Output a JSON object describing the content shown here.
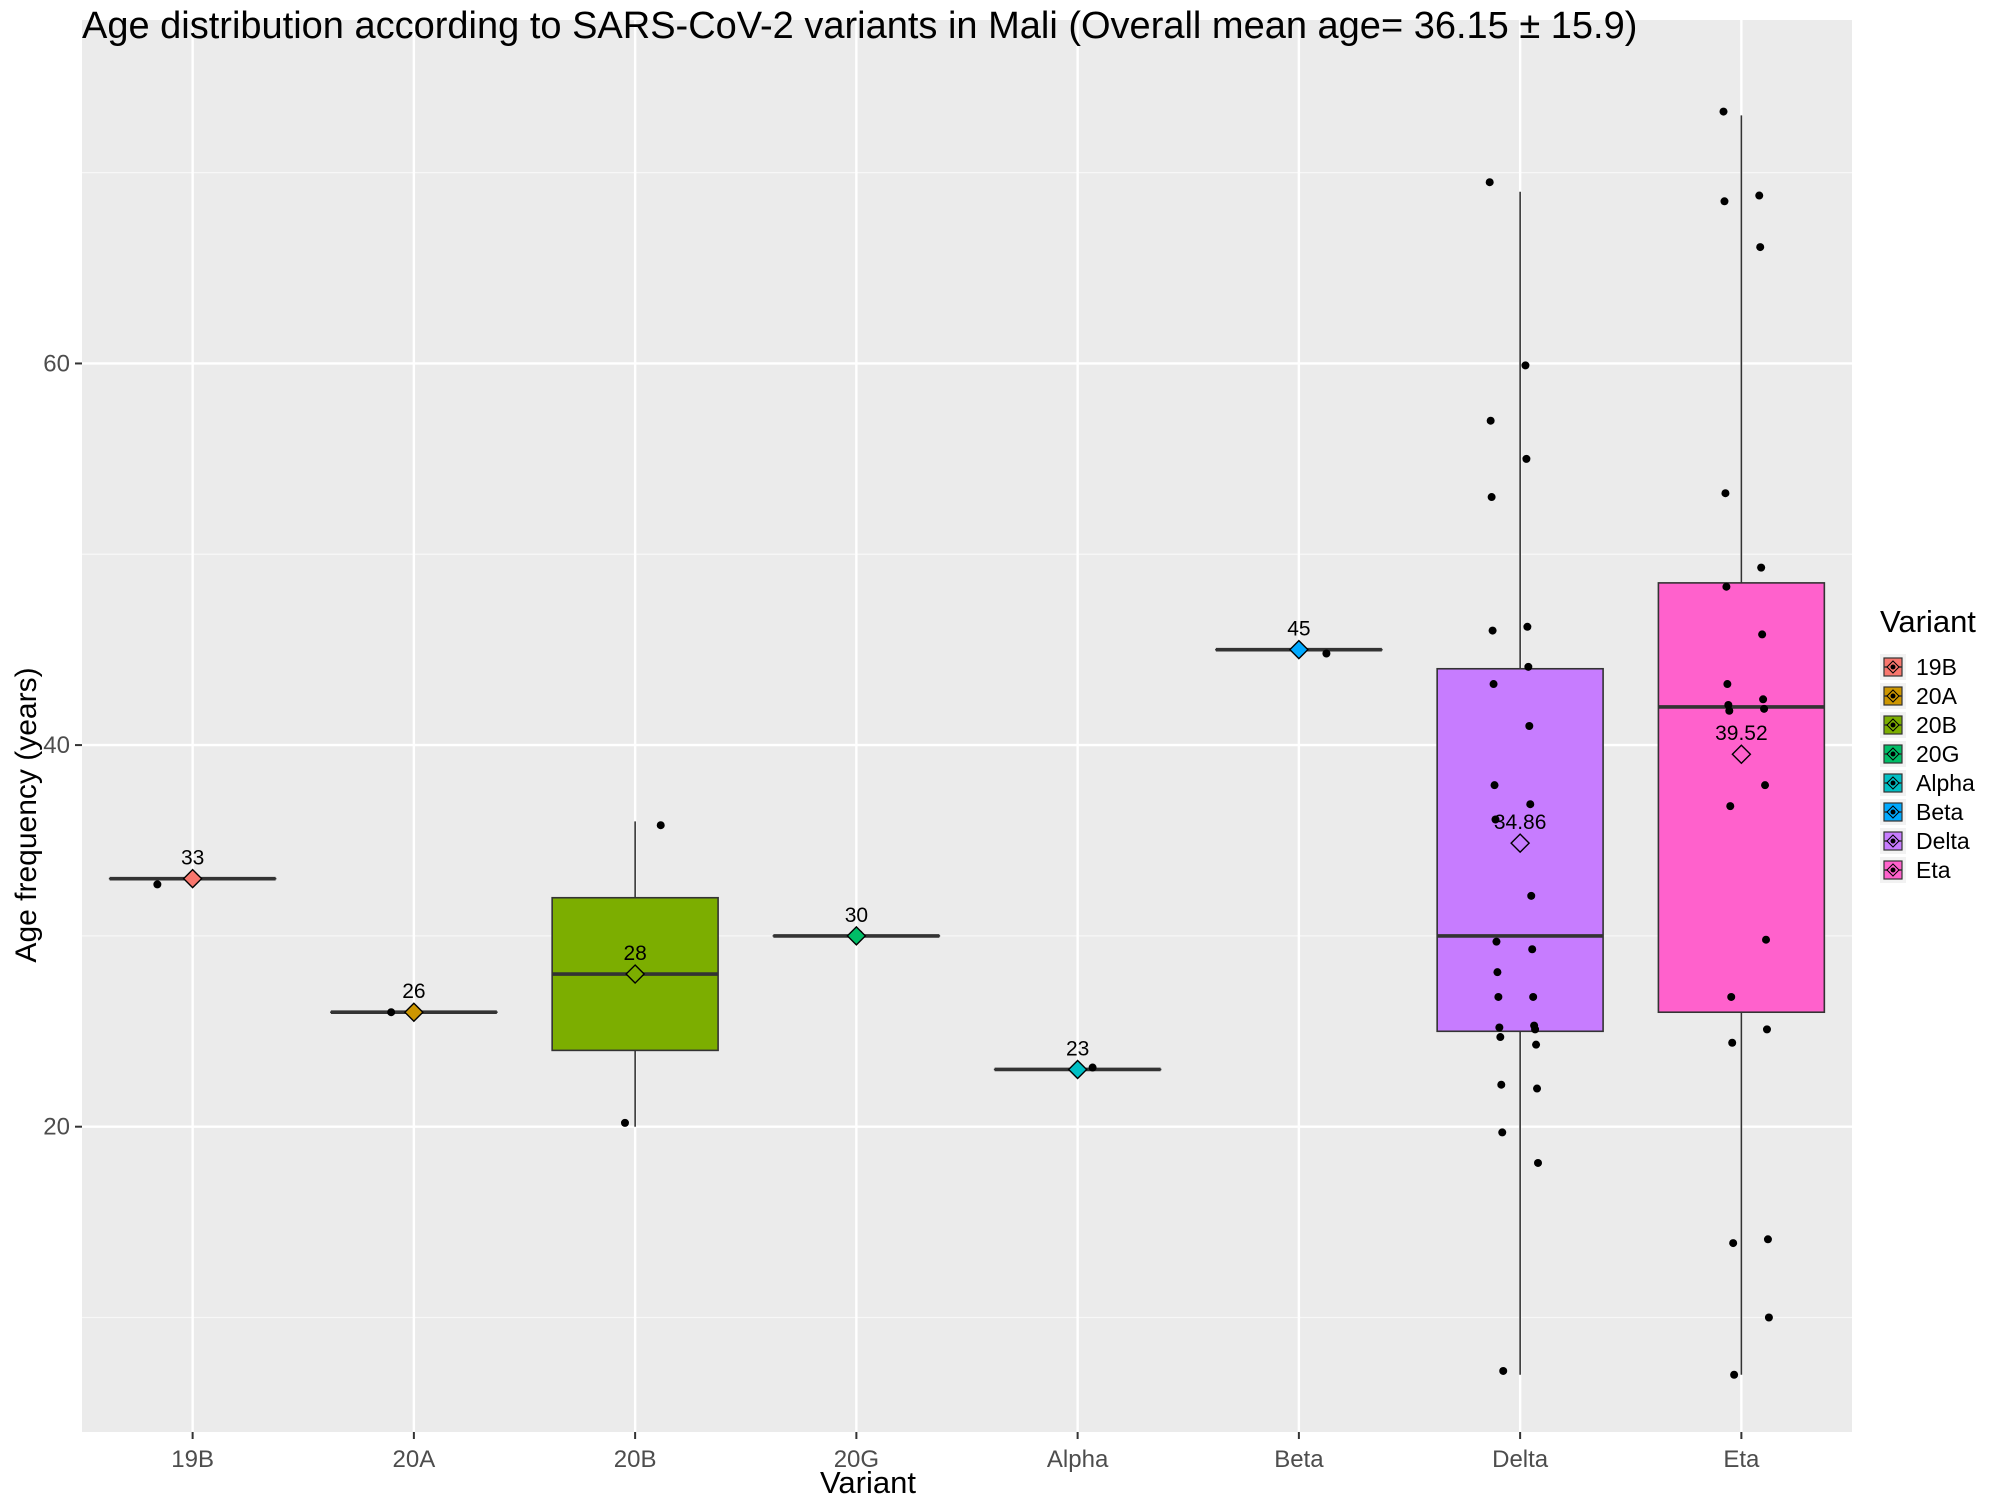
{
  "chart_data": {
    "type": "box",
    "title": "Age distribution according to SARS-CoV-2 variants in Mali (Overall mean age= 36.15 ± 15.9)",
    "xlabel": "Variant",
    "ylabel": "Age frequency (years)",
    "ylim": [
      4,
      78
    ],
    "y_ticks": [
      20,
      40,
      60
    ],
    "grid": true,
    "legend": {
      "title": "Variant",
      "position": "right"
    },
    "categories": [
      "19B",
      "20A",
      "20B",
      "20G",
      "Alpha",
      "Beta",
      "Delta",
      "Eta"
    ],
    "series": [
      {
        "name": "19B",
        "color": "#F8766D",
        "box": {
          "min": 33,
          "q1": 33,
          "median": 33,
          "q3": 33,
          "max": 33
        },
        "mean": 33,
        "mean_label": "33",
        "points": [
          32.7
        ]
      },
      {
        "name": "20A",
        "color": "#CD9600",
        "box": {
          "min": 26,
          "q1": 26,
          "median": 26,
          "q3": 26,
          "max": 26
        },
        "mean": 26,
        "mean_label": "26",
        "points": [
          26
        ]
      },
      {
        "name": "20B",
        "color": "#7CAE00",
        "box": {
          "min": 20,
          "q1": 24,
          "median": 28,
          "q3": 32,
          "max": 36
        },
        "mean": 28,
        "mean_label": "28",
        "points": [
          20.2,
          35.8
        ]
      },
      {
        "name": "20G",
        "color": "#00BE67",
        "box": {
          "min": 30,
          "q1": 30,
          "median": 30,
          "q3": 30,
          "max": 30
        },
        "mean": 30,
        "mean_label": "30",
        "points": [
          30.1
        ]
      },
      {
        "name": "Alpha",
        "color": "#00BFC4",
        "box": {
          "min": 23,
          "q1": 23,
          "median": 23,
          "q3": 23,
          "max": 23
        },
        "mean": 23,
        "mean_label": "23",
        "points": [
          23.1
        ]
      },
      {
        "name": "Beta",
        "color": "#00A9FF",
        "box": {
          "min": 45,
          "q1": 45,
          "median": 45,
          "q3": 45,
          "max": 45
        },
        "mean": 45,
        "mean_label": "45",
        "points": [
          44.8
        ]
      },
      {
        "name": "Delta",
        "color": "#C77CFF",
        "box": {
          "min": 7,
          "q1": 25,
          "median": 30,
          "q3": 44,
          "max": 69
        },
        "mean": 34.86,
        "mean_label": "34.86",
        "points": [
          69.5,
          59.9,
          57,
          55,
          53,
          46.2,
          46,
          44.1,
          43.2,
          41,
          37.9,
          36.9,
          36.1,
          32.1,
          29.7,
          29.3,
          28.1,
          26.8,
          26.8,
          25.3,
          25.2,
          25.1,
          24.7,
          24.3,
          22.2,
          22,
          19.7,
          18.1,
          7.2
        ]
      },
      {
        "name": "Eta",
        "color": "#FF61CC",
        "box": {
          "min": 7,
          "q1": 26,
          "median": 42,
          "q3": 48.5,
          "max": 73
        },
        "mean": 39.52,
        "mean_label": "39.52",
        "points": [
          73.2,
          68.8,
          68.5,
          66.1,
          53.2,
          49.3,
          48.3,
          45.8,
          43.2,
          42.4,
          42.1,
          41.9,
          41.8,
          37.9,
          36.8,
          29.8,
          26.8,
          25.1,
          24.4,
          14.1,
          13.9,
          10,
          7
        ]
      }
    ]
  }
}
